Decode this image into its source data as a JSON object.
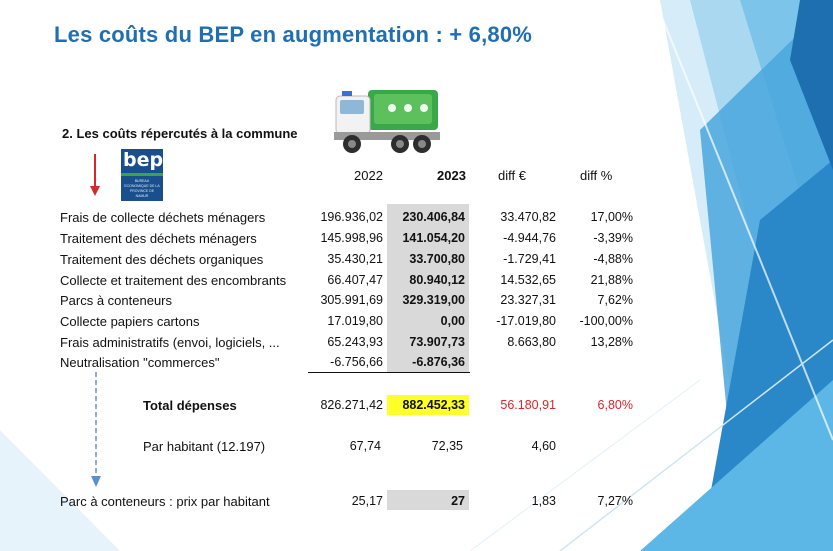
{
  "title": "Les coûts du BEP en augmentation : + 6,80%",
  "subtitle": "2. Les coûts répercutés à la commune",
  "logo": {
    "word": "bep",
    "sub": "BUREAU ECONOMIQUE DE LA PROVINCE DE NAMUR"
  },
  "columns": [
    "2022",
    "2023",
    "diff €",
    "diff %"
  ],
  "rows": [
    {
      "label": "Frais de collecte déchets ménagers",
      "y2022": "196.936,02",
      "y2023": "230.406,84",
      "diff": "33.470,82",
      "pct": "17,00%"
    },
    {
      "label": "Traitement des déchets ménagers",
      "y2022": "145.998,96",
      "y2023": "141.054,20",
      "diff": "-4.944,76",
      "pct": "-3,39%"
    },
    {
      "label": "Traitement des déchets organiques",
      "y2022": "35.430,21",
      "y2023": "33.700,80",
      "diff": "-1.729,41",
      "pct": "-4,88%"
    },
    {
      "label": "Collecte et traitement des encombrants",
      "y2022": "66.407,47",
      "y2023": "80.940,12",
      "diff": "14.532,65",
      "pct": "21,88%"
    },
    {
      "label": "Parcs à conteneurs",
      "y2022": "305.991,69",
      "y2023": "329.319,00",
      "diff": "23.327,31",
      "pct": "7,62%"
    },
    {
      "label": "Collecte papiers cartons",
      "y2022": "17.019,80",
      "y2023": "0,00",
      "diff": "-17.019,80",
      "pct": "-100,00%"
    },
    {
      "label": "Frais administratifs (envoi, logiciels, ...",
      "y2022": "65.243,93",
      "y2023": "73.907,73",
      "diff": "8.663,80",
      "pct": "13,28%"
    },
    {
      "label": "Neutralisation \"commerces\"",
      "y2022": "-6.756,66",
      "y2023": "-6.876,36",
      "diff": "",
      "pct": ""
    }
  ],
  "total": {
    "label": "Total dépenses",
    "y2022": "826.271,42",
    "y2023": "882.452,33",
    "diff": "56.180,91",
    "pct": "6,80%"
  },
  "per_habitant": {
    "label": "Par habitant (12.197)",
    "y2022": "67,74",
    "y2023": "72,35",
    "diff": "4,60"
  },
  "parc": {
    "label": "Parc à conteneurs : prix par habitant",
    "y2022": "25,17",
    "y2023": "27",
    "diff": "1,83",
    "pct": "7,27%"
  },
  "colors": {
    "title": "#1f6fb2",
    "highlight": "#ffff29",
    "shade": "#d9d9d9",
    "red": "#d8262a",
    "arrow_red": "#d8262a",
    "arrow_blue": "#5b8fc9"
  }
}
